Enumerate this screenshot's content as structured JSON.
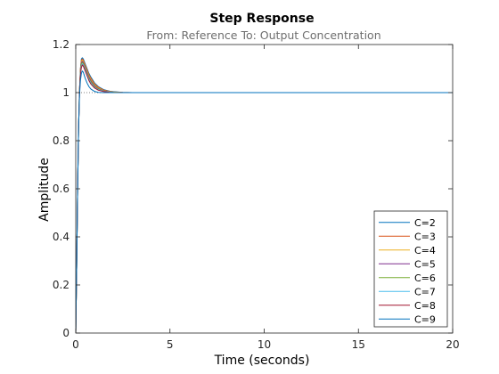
{
  "chart_data": {
    "type": "line",
    "title": "Step Response",
    "subtitle": "From: Reference  To: Output Concentration",
    "xlabel": "Time (seconds)",
    "ylabel": "Amplitude",
    "xlim": [
      0,
      20
    ],
    "ylim": [
      0,
      1.2
    ],
    "xticks": [
      0,
      5,
      10,
      15,
      20
    ],
    "xtick_labels": [
      "0",
      "5",
      "10",
      "15",
      "20"
    ],
    "yticks": [
      0,
      0.2,
      0.4,
      0.6,
      0.8,
      1.0,
      1.2
    ],
    "ytick_labels": [
      "0",
      "0.2",
      "0.4",
      "0.6",
      "0.8",
      "1",
      "1.2"
    ],
    "grid": false,
    "legend_position": "bottom-right",
    "reference_line": {
      "y": 1.0,
      "style": "dotted"
    },
    "series": [
      {
        "name": "C=2",
        "color": "#0072BD",
        "x": [
          0,
          0.05,
          0.1,
          0.15,
          0.2,
          0.25,
          0.3,
          0.35,
          0.4,
          0.5,
          0.6,
          0.7,
          0.8,
          1.0,
          1.2,
          1.5,
          1.8,
          2.0,
          2.5,
          3.0,
          5.0,
          20.0
        ],
        "y": [
          0,
          0.28,
          0.6,
          0.85,
          1.01,
          1.1,
          1.14,
          1.145,
          1.14,
          1.12,
          1.1,
          1.08,
          1.065,
          1.04,
          1.025,
          1.012,
          1.006,
          1.004,
          1.001,
          1.0,
          1.0,
          1.0
        ]
      },
      {
        "name": "C=3",
        "color": "#D95319",
        "x": [
          0,
          0.05,
          0.1,
          0.15,
          0.2,
          0.25,
          0.3,
          0.35,
          0.4,
          0.5,
          0.6,
          0.7,
          0.8,
          1.0,
          1.2,
          1.5,
          1.8,
          2.0,
          2.5,
          3.0,
          20.0
        ],
        "y": [
          0,
          0.28,
          0.6,
          0.85,
          1.01,
          1.1,
          1.135,
          1.14,
          1.135,
          1.115,
          1.095,
          1.075,
          1.06,
          1.036,
          1.022,
          1.01,
          1.005,
          1.003,
          1.001,
          1.0,
          1.0
        ]
      },
      {
        "name": "C=4",
        "color": "#EDB120",
        "x": [
          0,
          0.05,
          0.1,
          0.15,
          0.2,
          0.25,
          0.3,
          0.35,
          0.4,
          0.5,
          0.6,
          0.7,
          0.8,
          1.0,
          1.2,
          1.5,
          1.8,
          2.0,
          2.5,
          3.0,
          20.0
        ],
        "y": [
          0,
          0.28,
          0.6,
          0.85,
          1.01,
          1.095,
          1.13,
          1.135,
          1.13,
          1.11,
          1.09,
          1.07,
          1.055,
          1.032,
          1.019,
          1.008,
          1.004,
          1.002,
          1.0,
          1.0,
          1.0
        ]
      },
      {
        "name": "C=5",
        "color": "#7E2F8E",
        "x": [
          0,
          0.05,
          0.1,
          0.15,
          0.2,
          0.25,
          0.3,
          0.35,
          0.4,
          0.5,
          0.6,
          0.7,
          0.8,
          1.0,
          1.2,
          1.5,
          1.8,
          2.0,
          2.5,
          20.0
        ],
        "y": [
          0,
          0.28,
          0.6,
          0.85,
          1.01,
          1.09,
          1.125,
          1.13,
          1.125,
          1.105,
          1.085,
          1.065,
          1.05,
          1.028,
          1.016,
          1.007,
          1.003,
          1.001,
          1.0,
          1.0
        ]
      },
      {
        "name": "C=6",
        "color": "#77AC30",
        "x": [
          0,
          0.05,
          0.1,
          0.15,
          0.2,
          0.25,
          0.3,
          0.35,
          0.4,
          0.5,
          0.6,
          0.7,
          0.8,
          1.0,
          1.2,
          1.5,
          1.8,
          2.0,
          2.5,
          20.0
        ],
        "y": [
          0,
          0.28,
          0.6,
          0.85,
          1.01,
          1.085,
          1.12,
          1.125,
          1.12,
          1.1,
          1.08,
          1.06,
          1.045,
          1.025,
          1.014,
          1.006,
          1.002,
          1.001,
          1.0,
          1.0
        ]
      },
      {
        "name": "C=7",
        "color": "#4DBEEE",
        "x": [
          0,
          0.05,
          0.1,
          0.15,
          0.2,
          0.25,
          0.3,
          0.35,
          0.4,
          0.5,
          0.6,
          0.7,
          0.8,
          1.0,
          1.2,
          1.5,
          1.8,
          2.0,
          20.0
        ],
        "y": [
          0,
          0.28,
          0.6,
          0.85,
          1.0,
          1.08,
          1.11,
          1.12,
          1.115,
          1.095,
          1.075,
          1.055,
          1.04,
          1.022,
          1.012,
          1.005,
          1.002,
          1.0,
          1.0
        ]
      },
      {
        "name": "C=8",
        "color": "#A2142F",
        "x": [
          0,
          0.05,
          0.1,
          0.15,
          0.2,
          0.25,
          0.3,
          0.35,
          0.4,
          0.5,
          0.6,
          0.7,
          0.8,
          1.0,
          1.2,
          1.5,
          1.8,
          2.0,
          20.0
        ],
        "y": [
          0,
          0.28,
          0.6,
          0.85,
          1.0,
          1.075,
          1.105,
          1.115,
          1.11,
          1.09,
          1.07,
          1.05,
          1.036,
          1.019,
          1.01,
          1.004,
          1.001,
          1.0,
          1.0
        ]
      },
      {
        "name": "C=9",
        "color": "#0072BD",
        "x": [
          0,
          0.05,
          0.1,
          0.15,
          0.2,
          0.25,
          0.3,
          0.35,
          0.4,
          0.5,
          0.6,
          0.7,
          0.8,
          1.0,
          1.2,
          1.5,
          20.0
        ],
        "y": [
          0,
          0.28,
          0.6,
          0.85,
          0.99,
          1.05,
          1.08,
          1.09,
          1.085,
          1.06,
          1.04,
          1.025,
          1.015,
          1.005,
          1.001,
          1.0,
          1.0
        ]
      }
    ]
  }
}
